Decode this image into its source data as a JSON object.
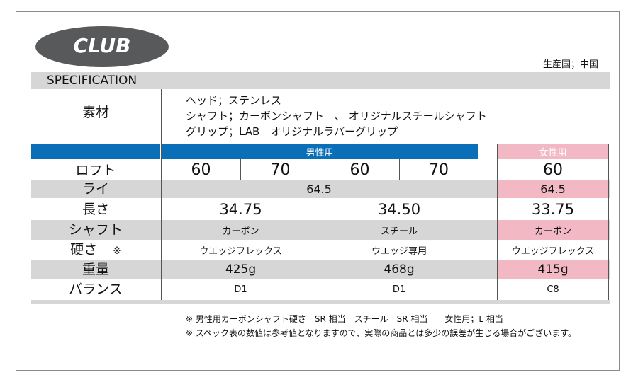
{
  "header": {
    "badge": "CLUB",
    "origin": "生産国；中国",
    "section_title": "SPECIFICATION"
  },
  "material": {
    "label": "素材",
    "lines": [
      "ヘッド；ステンレス",
      "シャフト；カーボンシャフト　、 オリジナルスチールシャフト",
      "グリップ；LAB　オリジナルラバーグリップ"
    ]
  },
  "columns": {
    "mens": "男性用",
    "womens": "女性用"
  },
  "rows": {
    "loft": {
      "label": "ロフト",
      "mens": [
        "60",
        "70",
        "60",
        "70"
      ],
      "womens": "60"
    },
    "lie": {
      "label": "ライ",
      "mens": "64.5",
      "womens": "64.5"
    },
    "length": {
      "label": "長さ",
      "mens": [
        "34.75",
        "34.50"
      ],
      "womens": "33.75"
    },
    "shaft": {
      "label": "シャフト",
      "mens": [
        "カーボン",
        "スチール"
      ],
      "womens": "カーボン"
    },
    "flex": {
      "label": "硬さ",
      "mark": "※",
      "mens": [
        "ウエッジフレックス",
        "ウエッジ専用"
      ],
      "womens": "ウエッジフレックス"
    },
    "weight": {
      "label": "重量",
      "mens": [
        "425g",
        "468g"
      ],
      "womens": "415g"
    },
    "balance": {
      "label": "バランス",
      "mens": [
        "D1",
        "D1"
      ],
      "womens": "C8"
    }
  },
  "notes": [
    "※ 男性用カーボンシャフト硬さ　SR 相当　スチール　SR 相当　　女性用；L 相当",
    "※ スペック表の数値は参考値となりますので、実際の商品とは多少の誤差が生じる場合がございます。"
  ],
  "colors": {
    "badge": "#58595b",
    "mens_header": "#0a6fb7",
    "womens_highlight": "#f2b9c5",
    "stripe": "#d6d6d6"
  }
}
